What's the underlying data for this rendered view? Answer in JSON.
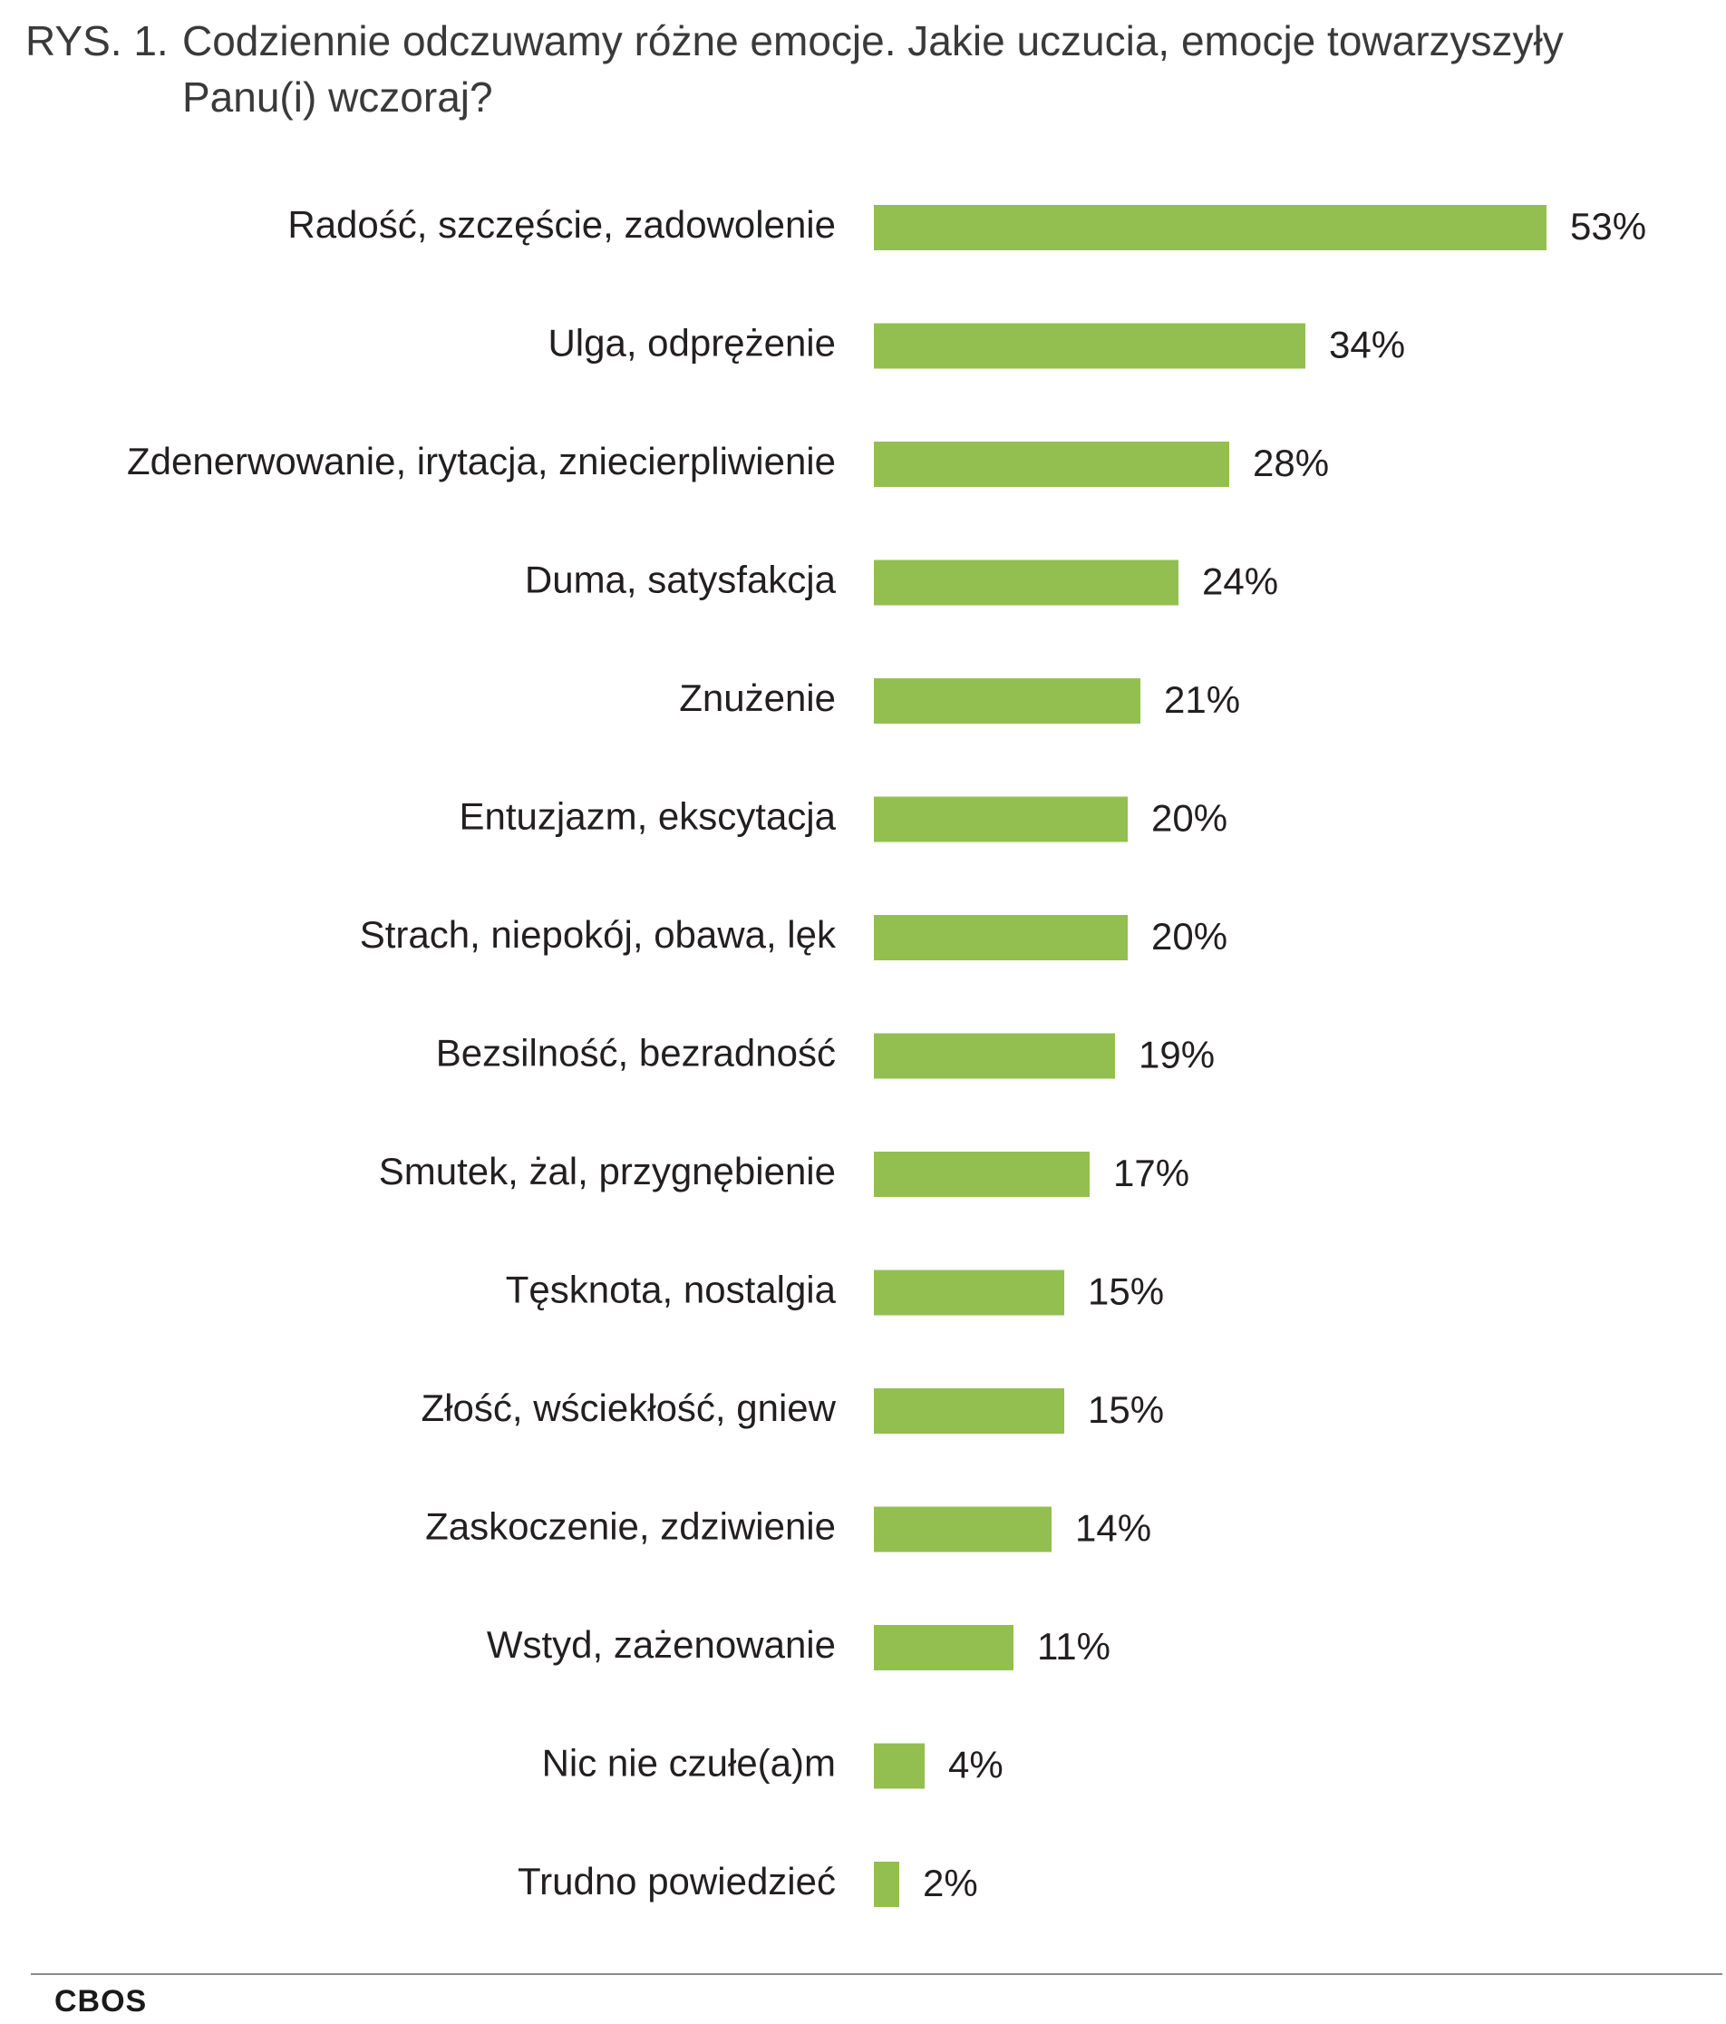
{
  "title": {
    "number": "RYS. 1.",
    "line1": "Codziennie odczuwamy różne emocje. Jakie uczucia, emocje towarzyszyły",
    "line2": "Panu(i) wczoraj?"
  },
  "source": "CBOS",
  "colors": {
    "bar": "#92bf50",
    "text": "#231f20"
  },
  "chart_data": {
    "type": "bar",
    "orientation": "horizontal",
    "title": "Codziennie odczuwamy różne emocje. Jakie uczucia, emocje towarzyszyły Panu(i) wczoraj?",
    "categories": [
      "Radość, szczęście, zadowolenie",
      "Ulga, odprężenie",
      "Zdenerwowanie, irytacja, zniecierpliwienie",
      "Duma, satysfakcja",
      "Znużenie",
      "Entuzjazm, ekscytacja",
      "Strach, niepokój, obawa, lęk",
      "Bezsilność, bezradność",
      "Smutek, żal, przygnębienie",
      "Tęsknota, nostalgia",
      "Złość, wściekłość, gniew",
      "Zaskoczenie, zdziwienie",
      "Wstyd, zażenowanie",
      "Nic nie czułe(a)m",
      "Trudno powiedzieć"
    ],
    "values": [
      53,
      34,
      28,
      24,
      21,
      20,
      20,
      19,
      17,
      15,
      15,
      14,
      11,
      4,
      2
    ],
    "value_labels": [
      "53%",
      "34%",
      "28%",
      "24%",
      "21%",
      "20%",
      "20%",
      "19%",
      "17%",
      "15%",
      "15%",
      "14%",
      "11%",
      "4%",
      "2%"
    ],
    "unit": "%",
    "grid": false,
    "legend": "none"
  }
}
